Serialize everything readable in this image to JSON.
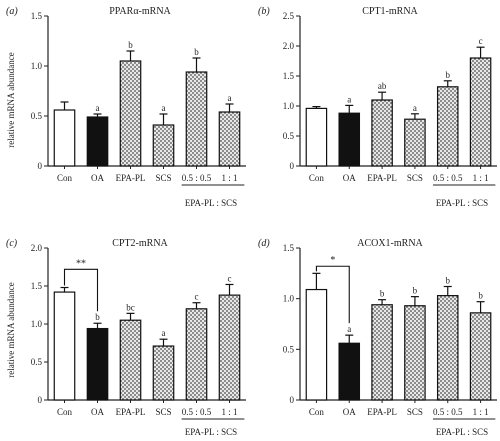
{
  "shared": {
    "ylabel": "relative mRNA abundance",
    "group_label": "EPA-PL : SCS",
    "categories": [
      "Con",
      "OA",
      "EPA-PL",
      "SCS",
      "0.5 : 0.5",
      "1 : 1"
    ],
    "fills": [
      "white",
      "black",
      "hatch",
      "hatch",
      "hatch",
      "hatch"
    ]
  },
  "chart_data": [
    {
      "type": "bar",
      "panel": "(a)",
      "title": "PPARα-mRNA",
      "categories": [
        "Con",
        "OA",
        "EPA-PL",
        "SCS",
        "0.5 : 0.5",
        "1 : 1"
      ],
      "values": [
        0.56,
        0.49,
        1.05,
        0.41,
        0.94,
        0.54
      ],
      "errors": [
        0.08,
        0.03,
        0.1,
        0.11,
        0.14,
        0.08
      ],
      "letters": [
        "",
        "a",
        "b",
        "a",
        "b",
        "a"
      ],
      "ylim": [
        0,
        1.5
      ],
      "yticks": [
        "0",
        "0.5",
        "1.0",
        "1.5"
      ],
      "ytick_values": [
        0,
        0.5,
        1.0,
        1.5
      ],
      "ylabel": "relative mRNA abundance",
      "sig": null
    },
    {
      "type": "bar",
      "panel": "(b)",
      "title": "CPT1-mRNA",
      "categories": [
        "Con",
        "OA",
        "EPA-PL",
        "SCS",
        "0.5 : 0.5",
        "1 : 1"
      ],
      "values": [
        0.96,
        0.88,
        1.1,
        0.78,
        1.32,
        1.8
      ],
      "errors": [
        0.03,
        0.13,
        0.13,
        0.09,
        0.1,
        0.18
      ],
      "letters": [
        "",
        "a",
        "ab",
        "a",
        "b",
        "c"
      ],
      "ylim": [
        0,
        2.5
      ],
      "yticks": [
        "0",
        "0.5",
        "1.0",
        "1.5",
        "2.0",
        "2.5"
      ],
      "ytick_values": [
        0,
        0.5,
        1.0,
        1.5,
        2.0,
        2.5
      ],
      "ylabel": "",
      "sig": null
    },
    {
      "type": "bar",
      "panel": "(c)",
      "title": "CPT2-mRNA",
      "categories": [
        "Con",
        "OA",
        "EPA-PL",
        "SCS",
        "0.5 : 0.5",
        "1 : 1"
      ],
      "values": [
        1.42,
        0.94,
        1.05,
        0.71,
        1.2,
        1.38
      ],
      "errors": [
        0.06,
        0.07,
        0.09,
        0.09,
        0.08,
        0.14
      ],
      "letters": [
        "",
        "b",
        "bc",
        "a",
        "c",
        "c"
      ],
      "ylim": [
        0,
        2.0
      ],
      "yticks": [
        "0",
        "0.5",
        "1.0",
        "1.5",
        "2.0"
      ],
      "ytick_values": [
        0,
        0.5,
        1.0,
        1.5,
        2.0
      ],
      "ylabel": "relative mRNA abundance",
      "sig": {
        "label": "**",
        "y": 1.72
      }
    },
    {
      "type": "bar",
      "panel": "(d)",
      "title": "ACOX1-mRNA",
      "categories": [
        "Con",
        "OA",
        "EPA-PL",
        "SCS",
        "0.5 : 0.5",
        "1 : 1"
      ],
      "values": [
        1.09,
        0.56,
        0.94,
        0.93,
        1.03,
        0.86
      ],
      "errors": [
        0.16,
        0.08,
        0.05,
        0.09,
        0.09,
        0.11
      ],
      "letters": [
        "",
        "a",
        "b",
        "b",
        "b",
        "b"
      ],
      "ylim": [
        0,
        1.5
      ],
      "yticks": [
        "0",
        "0.5",
        "1.0",
        "1.5"
      ],
      "ytick_values": [
        0,
        0.5,
        1.0,
        1.5
      ],
      "ylabel": "",
      "sig": {
        "label": "*",
        "y": 1.32
      }
    }
  ]
}
